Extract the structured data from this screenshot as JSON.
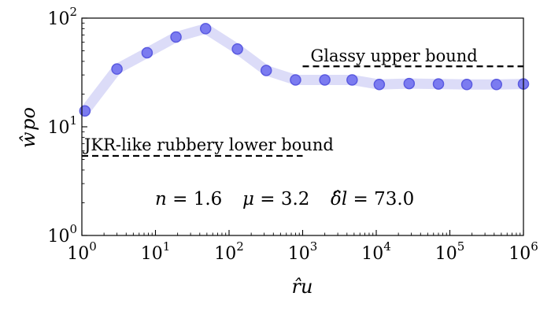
{
  "chart_data": {
    "type": "line",
    "x_scale": "log",
    "y_scale": "log",
    "xlim": [
      1,
      1000000
    ],
    "ylim": [
      1,
      100
    ],
    "grid": false,
    "xlabel": "r̂u",
    "ylabel": "ŵpo",
    "x_ticks": [
      {
        "value": 1,
        "mantissa": "10",
        "exp": "0"
      },
      {
        "value": 10,
        "mantissa": "10",
        "exp": "1"
      },
      {
        "value": 100,
        "mantissa": "10",
        "exp": "2"
      },
      {
        "value": 1000,
        "mantissa": "10",
        "exp": "3"
      },
      {
        "value": 10000,
        "mantissa": "10",
        "exp": "4"
      },
      {
        "value": 100000,
        "mantissa": "10",
        "exp": "5"
      },
      {
        "value": 1000000,
        "mantissa": "10",
        "exp": "6"
      }
    ],
    "y_ticks": [
      {
        "value": 1,
        "mantissa": "10",
        "exp": "0"
      },
      {
        "value": 10,
        "mantissa": "10",
        "exp": "1"
      },
      {
        "value": 100,
        "mantissa": "10",
        "exp": "2"
      }
    ],
    "series": [
      {
        "color": "#6a6aee",
        "band_color": "#dcdcf8",
        "x": [
          1.1,
          3,
          7.7,
          19,
          48,
          130,
          320,
          800,
          2000,
          4700,
          11000,
          28000,
          70000,
          170000,
          430000,
          1000000
        ],
        "y": [
          14,
          34,
          48,
          67,
          80,
          52,
          33,
          27,
          27,
          27,
          24.5,
          25,
          24.8,
          24.5,
          24.5,
          24.8
        ]
      }
    ],
    "bounds": [
      {
        "label": "Glassy upper bound",
        "y": 36,
        "x_start": 1000,
        "x_end": 1000000
      },
      {
        "label": "JKR-like rubbery lower bound",
        "y": 5.4,
        "x_start": 1,
        "x_end": 1000
      }
    ],
    "parameters": [
      {
        "symbol": "n",
        "value": "1.6"
      },
      {
        "symbol": "μ",
        "value": "3.2"
      },
      {
        "symbol": "δ̂l",
        "value": "73.0"
      }
    ]
  }
}
